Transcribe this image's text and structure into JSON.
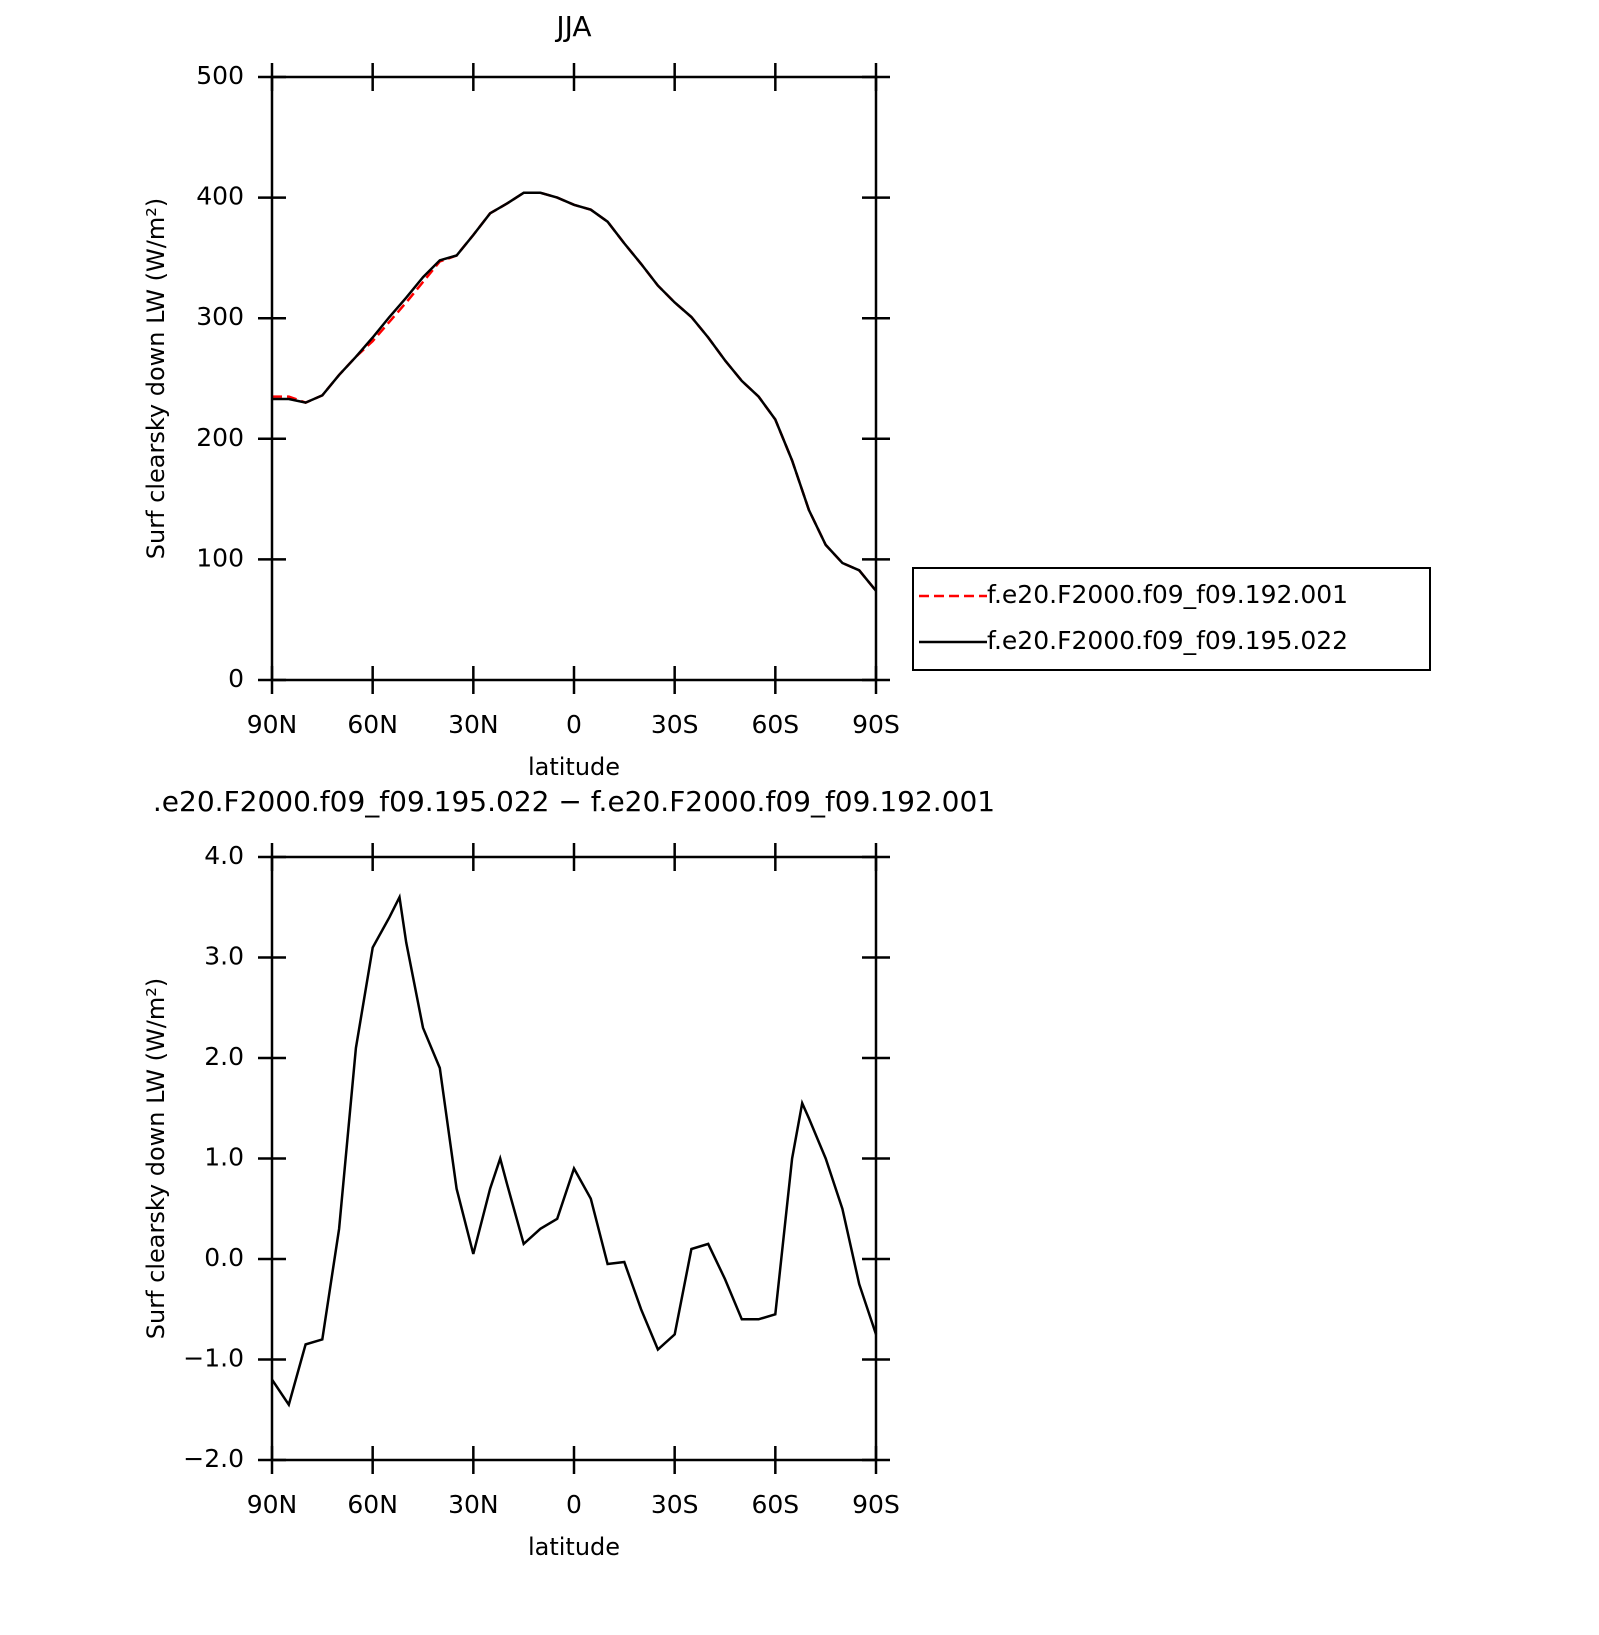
{
  "chart_data": [
    {
      "type": "line",
      "title": "JJA",
      "xlabel": "latitude",
      "ylabel": "Surf clearsky down LW (W/m²)",
      "x": [
        90,
        85,
        80,
        75,
        70,
        65,
        60,
        55,
        50,
        45,
        40,
        35,
        30,
        25,
        20,
        15,
        10,
        5,
        0,
        -5,
        -10,
        -15,
        -20,
        -25,
        -30,
        -35,
        -40,
        -45,
        -50,
        -55,
        -60,
        -65,
        -70,
        -75,
        -80,
        -85,
        -90
      ],
      "xlim": [
        90,
        -90
      ],
      "xticks": [
        {
          "value": 90,
          "label": "90N"
        },
        {
          "value": 60,
          "label": "60N"
        },
        {
          "value": 30,
          "label": "30N"
        },
        0,
        {
          "value": -30,
          "label": "30S"
        },
        {
          "value": -60,
          "label": "60S"
        },
        {
          "value": -90,
          "label": "90S"
        }
      ],
      "ylim": [
        0,
        500
      ],
      "yticks": [
        0,
        100,
        200,
        300,
        400,
        500
      ],
      "series": [
        {
          "name": "f.e20.F2000.f09_f09.192.001",
          "color": "#ff0000",
          "dash": true,
          "values": [
            235,
            235,
            230,
            236,
            253,
            268,
            281,
            297,
            313,
            330,
            347,
            352,
            369,
            387,
            395,
            404,
            404,
            400,
            394,
            390,
            380,
            362,
            345,
            327,
            313,
            301,
            284,
            265,
            248,
            235,
            216,
            182,
            141,
            112,
            97,
            91,
            74
          ]
        },
        {
          "name": "f.e20.F2000.f09_f09.195.022",
          "color": "#000000",
          "dash": false,
          "values": [
            233,
            233,
            230,
            236,
            253,
            268,
            284,
            301,
            317,
            334,
            348,
            352,
            369,
            387,
            395,
            404,
            404,
            400,
            394,
            390,
            380,
            362,
            345,
            327,
            313,
            301,
            284,
            265,
            248,
            235,
            216,
            182,
            141,
            112,
            97,
            91,
            74
          ]
        }
      ]
    },
    {
      "type": "line",
      "title": ".e20.F2000.f09_f09.195.022 − f.e20.F2000.f09_f09.192.001",
      "xlabel": "latitude",
      "ylabel": "Surf clearsky down LW (W/m²)",
      "x": [
        90,
        85,
        80,
        75,
        70,
        65,
        60,
        55,
        52,
        50,
        45,
        40,
        35,
        30,
        25,
        22,
        20,
        15,
        10,
        5,
        0,
        -5,
        -10,
        -15,
        -20,
        -25,
        -30,
        -35,
        -40,
        -45,
        -50,
        -55,
        -60,
        -65,
        -68,
        -70,
        -75,
        -80,
        -85,
        -90
      ],
      "xlim": [
        90,
        -90
      ],
      "xticks": [
        {
          "value": 90,
          "label": "90N"
        },
        {
          "value": 60,
          "label": "60N"
        },
        {
          "value": 30,
          "label": "30N"
        },
        0,
        {
          "value": -30,
          "label": "30S"
        },
        {
          "value": -60,
          "label": "60S"
        },
        {
          "value": -90,
          "label": "90S"
        }
      ],
      "ylim": [
        -2,
        4
      ],
      "yticks": [
        {
          "value": -2,
          "label": "−2.0"
        },
        {
          "value": -1,
          "label": "−1.0"
        },
        {
          "value": 0,
          "label": "0.0"
        },
        {
          "value": 1,
          "label": "1.0"
        },
        {
          "value": 2,
          "label": "2.0"
        },
        {
          "value": 3,
          "label": "3.0"
        },
        {
          "value": 4,
          "label": "4.0"
        }
      ],
      "series": [
        {
          "color": "#000000",
          "values": [
            -1.2,
            -1.45,
            -0.85,
            -0.8,
            0.3,
            2.1,
            3.1,
            3.4,
            3.6,
            3.15,
            2.3,
            1.9,
            0.7,
            0.05,
            0.7,
            1.0,
            0.75,
            0.15,
            0.3,
            0.4,
            0.9,
            0.6,
            -0.05,
            -0.03,
            -0.5,
            -0.9,
            -0.75,
            0.1,
            0.15,
            -0.2,
            -0.6,
            -0.6,
            -0.55,
            1.0,
            1.55,
            1.4,
            1.0,
            0.5,
            -0.25,
            -0.75
          ]
        }
      ]
    }
  ]
}
